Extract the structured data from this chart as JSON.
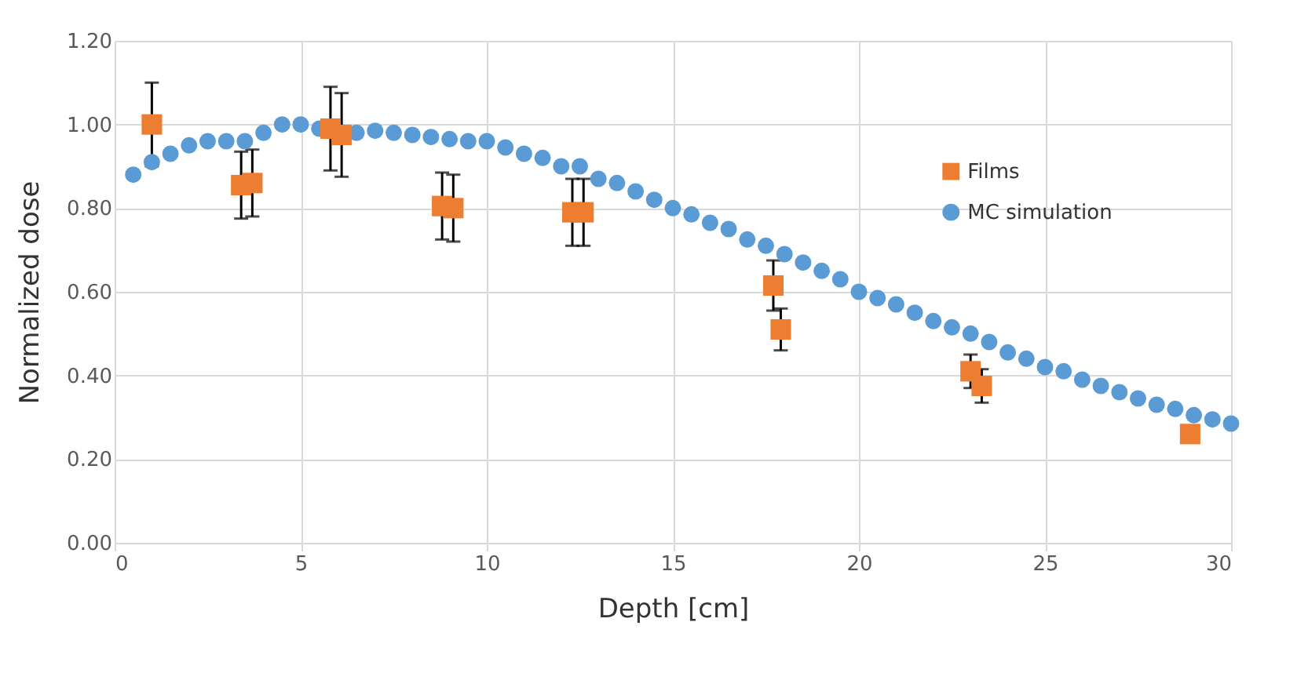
{
  "chart_data": {
    "type": "scatter",
    "xlabel": "Depth [cm]",
    "ylabel": "Normalized dose",
    "xlim": [
      0,
      30
    ],
    "xticks": [
      0,
      5,
      10,
      15,
      20,
      25,
      30
    ],
    "ylim": [
      0,
      1.2
    ],
    "yticks": [
      {
        "value": 0,
        "label": "0.00"
      },
      {
        "value": 0.2,
        "label": "0.20"
      },
      {
        "value": 0.4,
        "label": "0.40"
      },
      {
        "value": 0.6,
        "label": "0.60"
      },
      {
        "value": 0.8,
        "label": "0.80"
      },
      {
        "value": 1,
        "label": "1.00"
      },
      {
        "value": 1.2,
        "label": "1.20"
      }
    ],
    "grid": true,
    "legend": "right",
    "series": [
      {
        "name": "Films",
        "color": "#ed7d31",
        "marker": "square",
        "x": [
          1.0,
          3.4,
          3.7,
          5.8,
          6.1,
          8.8,
          9.1,
          12.3,
          12.6,
          17.7,
          17.9,
          23.0,
          23.3,
          28.9
        ],
        "values": [
          1.0,
          0.855,
          0.86,
          0.99,
          0.975,
          0.805,
          0.8,
          0.79,
          0.79,
          0.615,
          0.51,
          0.41,
          0.375,
          0.26
        ],
        "errors": [
          0.1,
          0.08,
          0.08,
          0.1,
          0.1,
          0.08,
          0.08,
          0.08,
          0.08,
          0.06,
          0.05,
          0.04,
          0.04,
          null
        ]
      },
      {
        "name": "MC simulation",
        "color": "#5b9bd5",
        "marker": "circle",
        "x": [
          0.5,
          1,
          1.5,
          2,
          2.5,
          3,
          3.5,
          4,
          4.5,
          5,
          5.5,
          6,
          6.5,
          7,
          7.5,
          8,
          8.5,
          9,
          9.5,
          10,
          10.5,
          11,
          11.5,
          12,
          12.5,
          13,
          13.5,
          14,
          14.5,
          15,
          15.5,
          16,
          16.5,
          17,
          17.5,
          18,
          18.5,
          19,
          19.5,
          20,
          20.5,
          21,
          21.5,
          22,
          22.5,
          23,
          23.5,
          24,
          24.5,
          25,
          25.5,
          26,
          26.5,
          27,
          27.5,
          28,
          28.5,
          29,
          29.5,
          30
        ],
        "values": [
          0.88,
          0.91,
          0.93,
          0.95,
          0.96,
          0.96,
          0.96,
          0.98,
          1.0,
          1.0,
          0.99,
          null,
          0.98,
          0.985,
          0.98,
          0.975,
          0.97,
          0.965,
          0.96,
          0.96,
          0.945,
          0.93,
          0.92,
          0.9,
          0.9,
          0.87,
          0.86,
          0.84,
          0.82,
          0.8,
          0.785,
          0.765,
          0.75,
          0.725,
          0.71,
          0.69,
          0.67,
          0.65,
          0.63,
          0.6,
          0.585,
          0.57,
          0.55,
          0.53,
          0.515,
          0.5,
          0.48,
          0.455,
          0.44,
          0.42,
          0.41,
          0.39,
          0.375,
          0.36,
          0.345,
          0.33,
          0.32,
          0.305,
          0.295,
          0.285
        ]
      }
    ]
  }
}
